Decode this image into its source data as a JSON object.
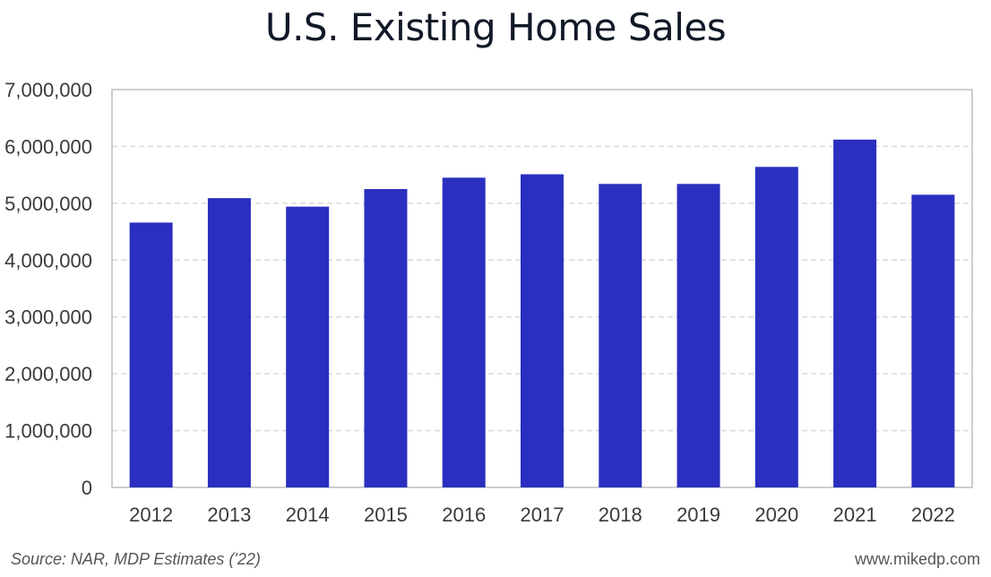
{
  "chart_data": {
    "type": "bar",
    "title": "U.S. Existing Home Sales",
    "categories": [
      "2012",
      "2013",
      "2014",
      "2015",
      "2016",
      "2017",
      "2018",
      "2019",
      "2020",
      "2021",
      "2022"
    ],
    "values": [
      4660000,
      5090000,
      4940000,
      5250000,
      5450000,
      5510000,
      5340000,
      5340000,
      5640000,
      6120000,
      5150000
    ],
    "ylim": [
      0,
      7000000
    ],
    "yticks": [
      "0",
      "1,000,000",
      "2,000,000",
      "3,000,000",
      "4,000,000",
      "5,000,000",
      "6,000,000",
      "7,000,000"
    ],
    "grid": true,
    "bar_color": "#2a2fbf",
    "grid_color": "#d9d9d9",
    "axis_color": "#bdbdbd"
  },
  "footer": {
    "source": "Source: NAR, MDP Estimates ('22)",
    "site": "www.mikedp.com"
  }
}
